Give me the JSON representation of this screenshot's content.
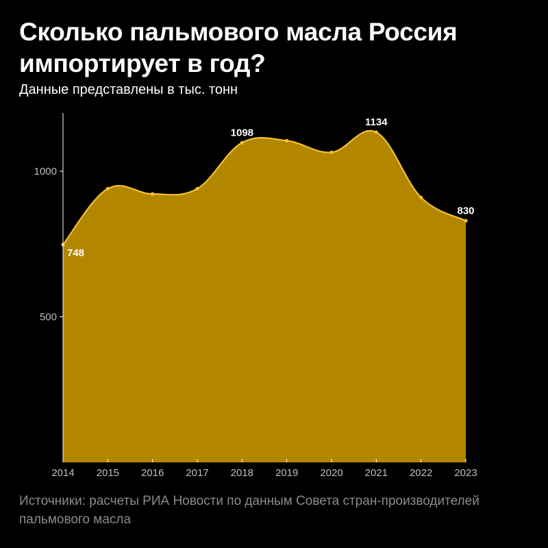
{
  "title": "Сколько пальмового масла Россия импортирует в год?",
  "subtitle": "Данные представлены в тыс. тонн",
  "source": "Источники: расчеты РИА Новости по данным Совета стран-производителей пальмового масла",
  "colors": {
    "background": "#000000",
    "area_fill": "#b38600",
    "line": "#f2c230",
    "text": "#ffffff",
    "tick_text": "#bfbfbf",
    "source_text": "#8c8c8c"
  },
  "chart_data": {
    "type": "area",
    "x": [
      "2014",
      "2015",
      "2016",
      "2017",
      "2018",
      "2019",
      "2020",
      "2021",
      "2022",
      "2023"
    ],
    "values": [
      748,
      940,
      922,
      940,
      1098,
      1105,
      1065,
      1134,
      910,
      830
    ],
    "data_labels": [
      {
        "index": 0,
        "text": "748"
      },
      {
        "index": 4,
        "text": "1098"
      },
      {
        "index": 7,
        "text": "1134"
      },
      {
        "index": 9,
        "text": "830"
      }
    ],
    "yticks": [
      500,
      1000
    ],
    "ylim": [
      0,
      1200
    ],
    "grid": false,
    "legend": false
  }
}
